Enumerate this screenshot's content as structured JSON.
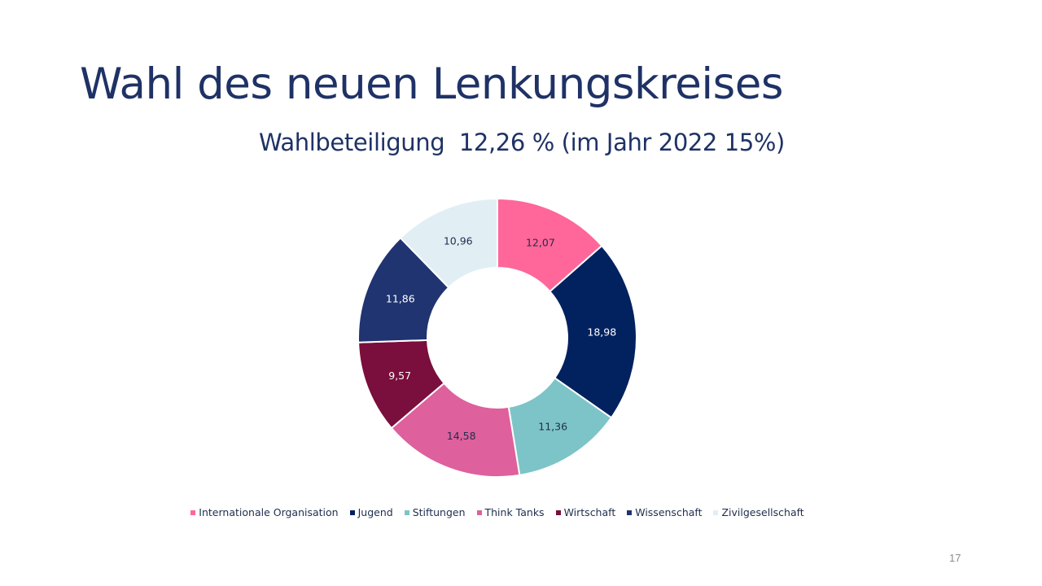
{
  "slide": {
    "title": "Wahl des neuen Lenkungskreises",
    "subtitle": "Wahlbeteiligung  12,26 % (im Jahr 2022 15%)",
    "page_number": "17"
  },
  "chart_data": {
    "type": "pie",
    "hole": true,
    "legend_position": "bottom",
    "slices": [
      {
        "category": "Internationale Organisation",
        "value": 12.07,
        "label": "12,07",
        "color": "#ff6699",
        "label_color": "#1f2d4d"
      },
      {
        "category": "Jugend",
        "value": 18.98,
        "label": "18,98",
        "color": "#02215f",
        "label_color": "#ffffff"
      },
      {
        "category": "Stiftungen",
        "value": 11.36,
        "label": "11,36",
        "color": "#7dc4c8",
        "label_color": "#1f2d4d"
      },
      {
        "category": "Think Tanks",
        "value": 14.58,
        "label": "14,58",
        "color": "#de609c",
        "label_color": "#1f2d4d"
      },
      {
        "category": "Wirtschaft",
        "value": 9.57,
        "label": "9,57",
        "color": "#7a0e3c",
        "label_color": "#ffffff"
      },
      {
        "category": "Wissenschaft",
        "value": 11.86,
        "label": "11,86",
        "color": "#1f3470",
        "label_color": "#ffffff"
      },
      {
        "category": "Zivilgesellschaft",
        "value": 10.96,
        "label": "10,96",
        "color": "#e1eff4",
        "label_color": "#1f2d4d"
      }
    ]
  }
}
